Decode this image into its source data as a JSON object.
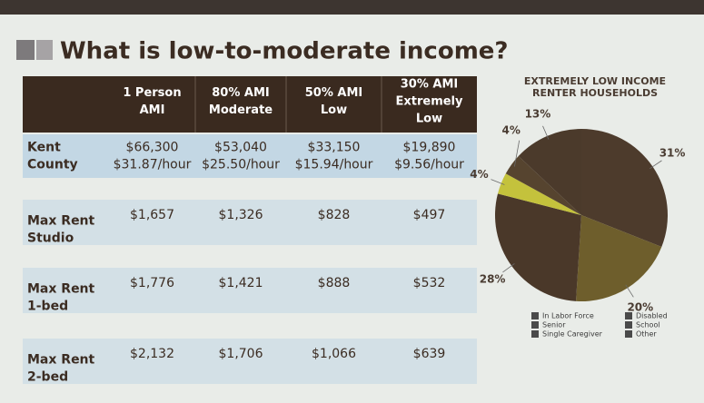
{
  "title": "What is low-to-moderate income?",
  "table": {
    "columns": [
      [
        "1 Person",
        "AMI"
      ],
      [
        "80% AMI",
        "Moderate"
      ],
      [
        "50% AMI",
        "Low"
      ],
      [
        "30% AMI",
        "Extremely",
        "Low"
      ]
    ],
    "rows": [
      {
        "label": [
          "Kent",
          "County"
        ],
        "cells": [
          [
            "$66,300",
            "$31.87/hour"
          ],
          [
            "$53,040",
            "$25.50/hour"
          ],
          [
            "$33,150",
            "$15.94/hour"
          ],
          [
            "$19,890",
            "$9.56/hour"
          ]
        ]
      },
      {
        "label": [
          "Max Rent",
          "Studio"
        ],
        "cells": [
          [
            "$1,657"
          ],
          [
            "$1,326"
          ],
          [
            "$828"
          ],
          [
            "$497"
          ]
        ]
      },
      {
        "label": [
          "Max Rent",
          "1-bed"
        ],
        "cells": [
          [
            "$1,776"
          ],
          [
            "$1,421"
          ],
          [
            "$888"
          ],
          [
            "$532"
          ]
        ]
      },
      {
        "label": [
          "Max Rent",
          "2-bed"
        ],
        "cells": [
          [
            "$2,132"
          ],
          [
            "$1,706"
          ],
          [
            "$1,066"
          ],
          [
            "$639"
          ]
        ]
      }
    ]
  },
  "chart_data": {
    "type": "pie",
    "title": [
      "EXTREMELY LOW INCOME",
      "RENTER HOUSEHOLDS"
    ],
    "categories": [
      "In Labor Force",
      "Senior",
      "Single Caregiver",
      "Disabled",
      "School",
      "Other"
    ],
    "values": [
      31,
      20,
      28,
      4,
      4,
      13
    ],
    "value_labels": [
      "31%",
      "20%",
      "28%",
      "4%",
      "4%",
      "13%"
    ],
    "colors": [
      "#4d3b2c",
      "#6e5e2c",
      "#4a3829",
      "#c4c23c",
      "#56442f",
      "#4b3a2b"
    ]
  }
}
